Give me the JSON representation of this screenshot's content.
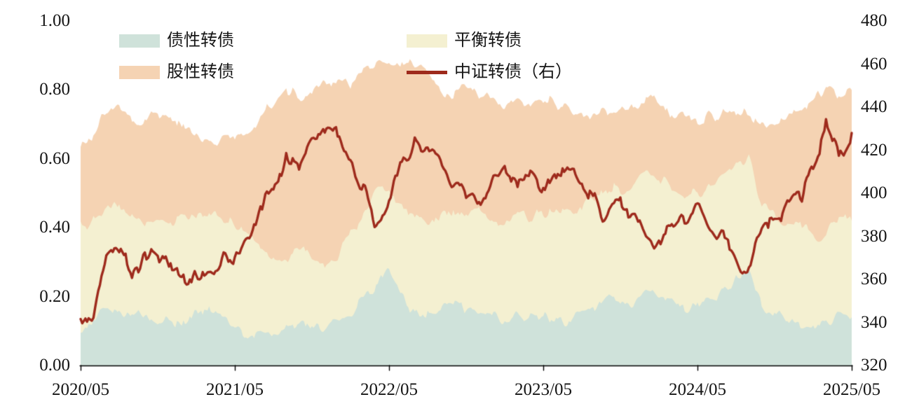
{
  "chart_data": {
    "type": "area",
    "stacked": true,
    "x_axis": {
      "unit": "month",
      "start": "2020/05",
      "end": "2025/05",
      "step_months": 1,
      "points": 61,
      "tick_labels": [
        "2020/05",
        "2021/05",
        "2022/05",
        "2023/05",
        "2024/05",
        "2025/05"
      ]
    },
    "left_axis": {
      "min": 0.0,
      "max": 1.0,
      "tick_labels": [
        "1.00",
        "0.80",
        "0.60",
        "0.40",
        "0.20",
        "0.00"
      ]
    },
    "right_axis": {
      "min": 320,
      "max": 480,
      "tick_labels": [
        "480",
        "460",
        "440",
        "420",
        "400",
        "380",
        "360",
        "340",
        "320"
      ]
    },
    "legend_position": "top",
    "area_series": [
      {
        "name": "债性转债",
        "axis": "left",
        "color": "#cfe2da",
        "values": [
          0.1,
          0.13,
          0.17,
          0.16,
          0.15,
          0.14,
          0.13,
          0.13,
          0.12,
          0.14,
          0.18,
          0.14,
          0.11,
          0.1,
          0.09,
          0.09,
          0.1,
          0.11,
          0.1,
          0.1,
          0.12,
          0.15,
          0.19,
          0.24,
          0.26,
          0.2,
          0.16,
          0.15,
          0.16,
          0.17,
          0.16,
          0.16,
          0.14,
          0.13,
          0.14,
          0.13,
          0.14,
          0.14,
          0.13,
          0.15,
          0.18,
          0.19,
          0.17,
          0.19,
          0.22,
          0.21,
          0.18,
          0.17,
          0.16,
          0.19,
          0.22,
          0.26,
          0.28,
          0.18,
          0.16,
          0.14,
          0.13,
          0.12,
          0.12,
          0.15,
          0.14
        ]
      },
      {
        "name": "平衡转债",
        "axis": "left",
        "color": "#f4f0d1",
        "values": [
          0.3,
          0.3,
          0.29,
          0.29,
          0.28,
          0.28,
          0.29,
          0.3,
          0.3,
          0.3,
          0.28,
          0.28,
          0.29,
          0.27,
          0.25,
          0.23,
          0.21,
          0.22,
          0.21,
          0.2,
          0.2,
          0.23,
          0.25,
          0.26,
          0.26,
          0.26,
          0.26,
          0.26,
          0.27,
          0.28,
          0.28,
          0.29,
          0.29,
          0.29,
          0.3,
          0.3,
          0.31,
          0.32,
          0.32,
          0.32,
          0.32,
          0.33,
          0.33,
          0.33,
          0.34,
          0.34,
          0.33,
          0.33,
          0.33,
          0.33,
          0.33,
          0.32,
          0.32,
          0.28,
          0.28,
          0.27,
          0.27,
          0.26,
          0.26,
          0.28,
          0.28
        ]
      },
      {
        "name": "股性转债",
        "axis": "left",
        "color": "#f5d3b3",
        "values": [
          0.23,
          0.25,
          0.28,
          0.31,
          0.29,
          0.29,
          0.31,
          0.28,
          0.26,
          0.22,
          0.18,
          0.24,
          0.26,
          0.31,
          0.38,
          0.44,
          0.49,
          0.44,
          0.5,
          0.54,
          0.51,
          0.44,
          0.42,
          0.38,
          0.35,
          0.42,
          0.44,
          0.43,
          0.37,
          0.34,
          0.36,
          0.33,
          0.34,
          0.34,
          0.33,
          0.33,
          0.32,
          0.3,
          0.3,
          0.26,
          0.22,
          0.21,
          0.24,
          0.23,
          0.22,
          0.22,
          0.22,
          0.22,
          0.22,
          0.2,
          0.18,
          0.16,
          0.13,
          0.24,
          0.27,
          0.31,
          0.34,
          0.4,
          0.43,
          0.35,
          0.38
        ]
      }
    ],
    "line_series": [
      {
        "name": "中证转债（右）",
        "axis": "right",
        "color": "#9e2a1c",
        "values": [
          341,
          346,
          374,
          371,
          366,
          368,
          372,
          368,
          364,
          359,
          363,
          367,
          371,
          378,
          390,
          404,
          418,
          408,
          422,
          432,
          428,
          415,
          400,
          385,
          395,
          415,
          426,
          421,
          412,
          402,
          398,
          396,
          404,
          408,
          403,
          407,
          403,
          406,
          408,
          403,
          396,
          389,
          395,
          388,
          378,
          372,
          384,
          388,
          394,
          386,
          380,
          372,
          364,
          388,
          386,
          396,
          400,
          412,
          433,
          416,
          428
        ]
      }
    ]
  }
}
